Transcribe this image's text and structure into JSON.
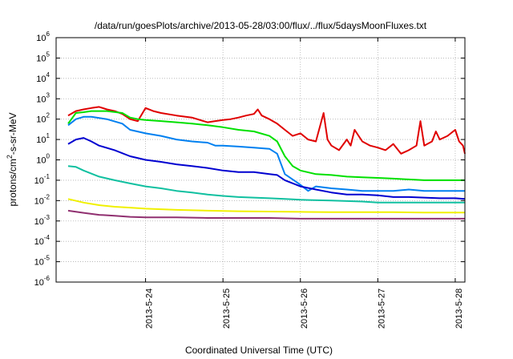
{
  "chart_data": {
    "type": "line",
    "title": "/data/run/goesPlots/archive/2013-05-28/03:00/flux/../flux/5daysMoonFluxes.txt",
    "xlabel": "Coordinated Universal Time (UTC)",
    "ylabel": {
      "base": "protons/cm",
      "sup": "2",
      "rest": "-s-sr-MeV"
    },
    "yscale": "log",
    "ylim_exp": [
      -6,
      6
    ],
    "y_ticks": [
      {
        "base": "10",
        "exp": "-6"
      },
      {
        "base": "10",
        "exp": "-5"
      },
      {
        "base": "10",
        "exp": "-4"
      },
      {
        "base": "10",
        "exp": "-3"
      },
      {
        "base": "10",
        "exp": "-2"
      },
      {
        "base": "10",
        "exp": "-1"
      },
      {
        "base": "10",
        "exp": "0"
      },
      {
        "base": "10",
        "exp": "1"
      },
      {
        "base": "10",
        "exp": "2"
      },
      {
        "base": "10",
        "exp": "3"
      },
      {
        "base": "10",
        "exp": "4"
      },
      {
        "base": "10",
        "exp": "5"
      },
      {
        "base": "10",
        "exp": "6"
      }
    ],
    "xlim": [
      "2013-05-23 00:00",
      "2013-05-28 03:00"
    ],
    "x_ticks": [
      "2013-5-24",
      "2013-5-25",
      "2013-5-26",
      "2013-5-27",
      "2013-5-28"
    ],
    "grid": true,
    "series": [
      {
        "color": "#e00000",
        "x": [
          23.0,
          23.1,
          23.2,
          23.3,
          23.4,
          23.5,
          23.6,
          23.7,
          23.8,
          23.9,
          24.0,
          24.1,
          24.2,
          24.4,
          24.6,
          24.8,
          24.9,
          25.0,
          25.1,
          25.2,
          25.3,
          25.4,
          25.45,
          25.5,
          25.6,
          25.7,
          25.8,
          25.9,
          26.0,
          26.1,
          26.2,
          26.3,
          26.35,
          26.4,
          26.5,
          26.6,
          26.65,
          26.7,
          26.8,
          26.9,
          27.0,
          27.1,
          27.2,
          27.3,
          27.4,
          27.5,
          27.55,
          27.6,
          27.7,
          27.75,
          27.8,
          27.9,
          28.0,
          28.05,
          28.1,
          28.125
        ],
        "y": [
          150,
          250,
          300,
          350,
          400,
          300,
          250,
          180,
          100,
          80,
          350,
          250,
          200,
          150,
          120,
          70,
          80,
          90,
          100,
          120,
          150,
          180,
          300,
          150,
          100,
          60,
          30,
          15,
          20,
          10,
          8,
          200,
          10,
          5,
          3,
          10,
          5,
          30,
          8,
          5,
          4,
          3,
          6,
          2,
          3,
          5,
          80,
          5,
          8,
          25,
          10,
          15,
          30,
          8,
          5,
          2
        ]
      },
      {
        "color": "#00e000",
        "x": [
          23.0,
          23.1,
          23.2,
          23.3,
          23.5,
          23.7,
          23.8,
          23.9,
          24.0,
          24.2,
          24.4,
          24.6,
          24.8,
          25.0,
          25.2,
          25.4,
          25.6,
          25.7,
          25.8,
          25.9,
          26.0,
          26.2,
          26.4,
          26.6,
          26.8,
          27.0,
          27.2,
          27.4,
          27.6,
          27.8,
          28.0,
          28.125
        ],
        "y": [
          60,
          200,
          220,
          250,
          250,
          200,
          120,
          100,
          90,
          80,
          70,
          60,
          50,
          40,
          30,
          25,
          15,
          8,
          1.5,
          0.5,
          0.3,
          0.2,
          0.18,
          0.15,
          0.14,
          0.13,
          0.12,
          0.11,
          0.1,
          0.1,
          0.1,
          0.1
        ]
      },
      {
        "color": "#0080f0",
        "x": [
          23.0,
          23.1,
          23.2,
          23.3,
          23.5,
          23.7,
          23.8,
          24.0,
          24.2,
          24.4,
          24.6,
          24.8,
          24.9,
          25.0,
          25.2,
          25.4,
          25.6,
          25.7,
          25.8,
          26.0,
          26.1,
          26.2,
          26.4,
          26.6,
          26.8,
          27.0,
          27.2,
          27.4,
          27.6,
          27.8,
          28.0,
          28.125
        ],
        "y": [
          50,
          100,
          130,
          130,
          100,
          60,
          30,
          20,
          15,
          10,
          8,
          7,
          5,
          5,
          4.5,
          4,
          3.5,
          2,
          0.2,
          0.06,
          0.03,
          0.05,
          0.04,
          0.035,
          0.03,
          0.03,
          0.03,
          0.035,
          0.03,
          0.03,
          0.03,
          0.03
        ]
      },
      {
        "color": "#0000d0",
        "x": [
          23.0,
          23.1,
          23.2,
          23.3,
          23.4,
          23.6,
          23.8,
          24.0,
          24.2,
          24.4,
          24.6,
          24.8,
          25.0,
          25.2,
          25.4,
          25.6,
          25.7,
          25.8,
          26.0,
          26.2,
          26.4,
          26.6,
          26.8,
          27.0,
          27.2,
          27.4,
          27.6,
          27.8,
          28.0,
          28.125
        ],
        "y": [
          6,
          10,
          12,
          8,
          5,
          3,
          1.5,
          1.0,
          0.8,
          0.6,
          0.5,
          0.4,
          0.3,
          0.25,
          0.25,
          0.2,
          0.18,
          0.1,
          0.05,
          0.035,
          0.025,
          0.02,
          0.02,
          0.018,
          0.015,
          0.015,
          0.014,
          0.013,
          0.013,
          0.012
        ]
      },
      {
        "color": "#10c0a0",
        "x": [
          23.0,
          23.1,
          23.2,
          23.4,
          23.6,
          23.8,
          24.0,
          24.2,
          24.4,
          24.6,
          24.8,
          25.0,
          25.2,
          25.4,
          25.6,
          25.8,
          26.0,
          26.4,
          26.8,
          27.0,
          27.4,
          27.8,
          28.0,
          28.125
        ],
        "y": [
          0.5,
          0.45,
          0.3,
          0.15,
          0.1,
          0.07,
          0.05,
          0.04,
          0.03,
          0.025,
          0.02,
          0.017,
          0.015,
          0.014,
          0.013,
          0.012,
          0.011,
          0.01,
          0.009,
          0.008,
          0.008,
          0.008,
          0.008,
          0.008
        ]
      },
      {
        "color": "#f0f000",
        "x": [
          23.0,
          23.2,
          23.4,
          23.6,
          23.8,
          24.0,
          24.4,
          24.8,
          25.2,
          25.6,
          26.0,
          26.4,
          26.8,
          27.2,
          27.6,
          28.0,
          28.125
        ],
        "y": [
          0.012,
          0.008,
          0.006,
          0.005,
          0.0045,
          0.004,
          0.0035,
          0.0032,
          0.003,
          0.0029,
          0.0028,
          0.0027,
          0.0027,
          0.0027,
          0.0026,
          0.0026,
          0.0026
        ]
      },
      {
        "color": "#903070",
        "x": [
          23.0,
          23.2,
          23.4,
          23.6,
          23.8,
          24.0,
          24.4,
          24.8,
          25.2,
          25.6,
          26.0,
          26.4,
          26.8,
          27.2,
          27.6,
          28.0,
          28.125
        ],
        "y": [
          0.0032,
          0.0025,
          0.002,
          0.0018,
          0.0016,
          0.0015,
          0.0015,
          0.0014,
          0.0014,
          0.0014,
          0.0013,
          0.0013,
          0.0013,
          0.0013,
          0.0013,
          0.0013,
          0.0013
        ]
      }
    ]
  }
}
